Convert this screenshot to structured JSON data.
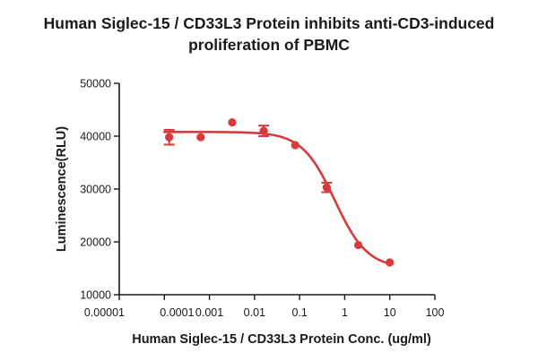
{
  "chart_data": {
    "type": "scatter",
    "title_line1": "Human Siglec-15 / CD33L3 Protein inhibits anti-CD3-induced",
    "title_line2": "proliferation of PBMC",
    "xlabel": "Human Siglec-15 / CD33L3 Protein Conc. (ug/ml)",
    "ylabel": "Luminescence(RLU)",
    "x_scale": "log",
    "xlim": [
      1e-05,
      100
    ],
    "ylim": [
      10000,
      50000
    ],
    "x_ticks": [
      1e-05,
      0.0001,
      0.001,
      0.01,
      0.1,
      1,
      10,
      100
    ],
    "x_tick_labels": [
      "0.00001",
      "0.0001",
      "0.001",
      "0.01",
      "0.1",
      "1",
      "10",
      "100"
    ],
    "y_ticks": [
      10000,
      20000,
      30000,
      40000,
      50000
    ],
    "y_tick_labels": [
      "10000",
      "20000",
      "30000",
      "40000",
      "50000"
    ],
    "color": "#d63a3a",
    "points": [
      {
        "x": 0.000128,
        "y": 39800,
        "err": 1400
      },
      {
        "x": 0.00064,
        "y": 39800,
        "err": 0
      },
      {
        "x": 0.0032,
        "y": 42600,
        "err": 0
      },
      {
        "x": 0.016,
        "y": 41000,
        "err": 1000
      },
      {
        "x": 0.08,
        "y": 38300,
        "err": 0
      },
      {
        "x": 0.4,
        "y": 30300,
        "err": 900
      },
      {
        "x": 2,
        "y": 19400,
        "err": 0
      },
      {
        "x": 10,
        "y": 16100,
        "err": 0
      }
    ],
    "fit": {
      "model": "4PL",
      "top": 40800,
      "bottom": 15000,
      "ec50": 0.6,
      "hill": 1.2
    }
  }
}
